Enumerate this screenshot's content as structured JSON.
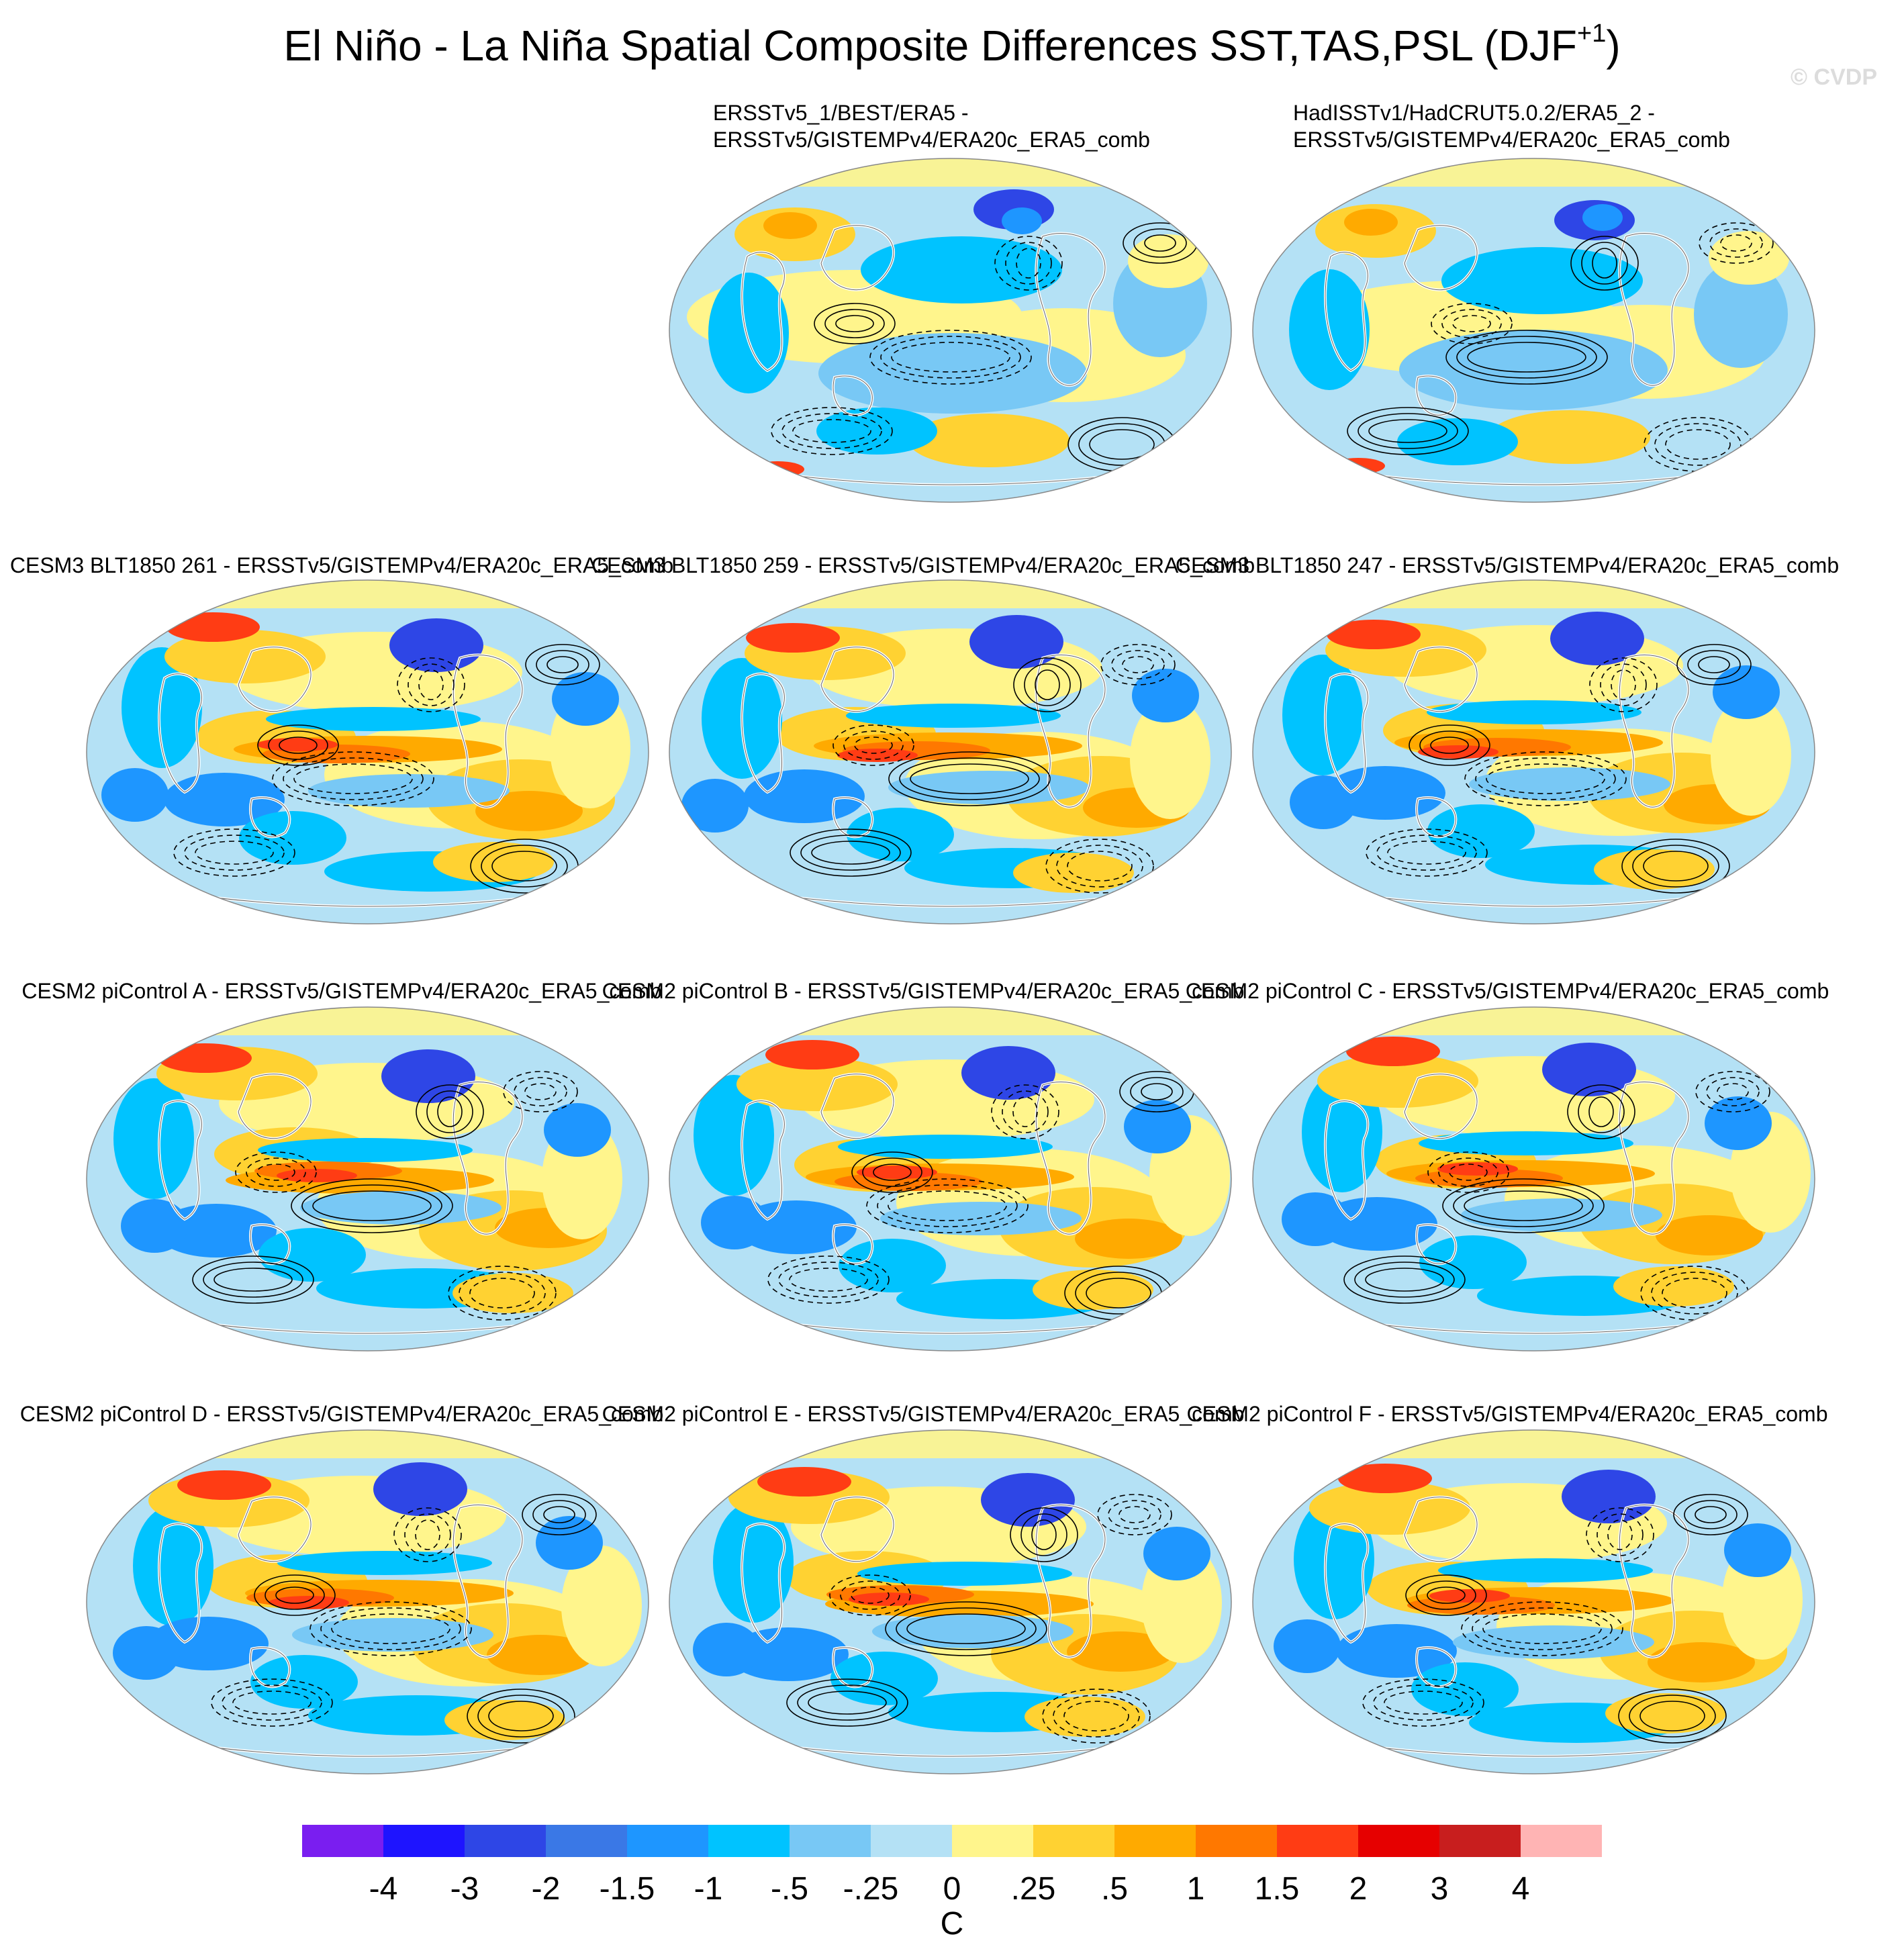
{
  "figure": {
    "title_main": "El Niño - La Niña Spatial Composite Differences SST,TAS,PSL (DJF",
    "title_sup": "+1",
    "title_close": ")",
    "watermark": "© CVDP"
  },
  "panels": [
    {
      "id": "obs1",
      "line1": "ERSSTv5_1/BEST/ERA5 -",
      "line2": "ERSSTv5/GISTEMPv4/ERA20c_ERA5_comb",
      "pattern": "obs"
    },
    {
      "id": "obs2",
      "line1": "HadISSTv1/HadCRUT5.0.2/ERA5_2 -",
      "line2": "ERSSTv5/GISTEMPv4/ERA20c_ERA5_comb",
      "pattern": "obs"
    },
    {
      "id": "cesm3-261",
      "label": "CESM3 BLT1850 261 - ERSSTv5/GISTEMPv4/ERA20c_ERA5_comb",
      "pattern": "model"
    },
    {
      "id": "cesm3-259",
      "label": "CESM3 BLT1850 259 - ERSSTv5/GISTEMPv4/ERA20c_ERA5_comb",
      "pattern": "model"
    },
    {
      "id": "cesm3-247",
      "label": "CESM3 BLT1850 247 - ERSSTv5/GISTEMPv4/ERA20c_ERA5_comb",
      "pattern": "model"
    },
    {
      "id": "cesm2-A",
      "label": "CESM2 piControl A - ERSSTv5/GISTEMPv4/ERA20c_ERA5_comb",
      "pattern": "model"
    },
    {
      "id": "cesm2-B",
      "label": "CESM2 piControl B - ERSSTv5/GISTEMPv4/ERA20c_ERA5_comb",
      "pattern": "model"
    },
    {
      "id": "cesm2-C",
      "label": "CESM2 piControl C - ERSSTv5/GISTEMPv4/ERA20c_ERA5_comb",
      "pattern": "model"
    },
    {
      "id": "cesm2-D",
      "label": "CESM2 piControl D - ERSSTv5/GISTEMPv4/ERA20c_ERA5_comb",
      "pattern": "model"
    },
    {
      "id": "cesm2-E",
      "label": "CESM2 piControl E - ERSSTv5/GISTEMPv4/ERA20c_ERA5_comb",
      "pattern": "model"
    },
    {
      "id": "cesm2-F",
      "label": "CESM2 piControl F - ERSSTv5/GISTEMPv4/ERA20c_ERA5_comb",
      "pattern": "model"
    }
  ],
  "colorbar": {
    "colors": [
      "#7a1ef0",
      "#1e14ff",
      "#2e46e6",
      "#3a78e6",
      "#1e96ff",
      "#00c3ff",
      "#78c8f5",
      "#b4e1f5",
      "#fff58c",
      "#ffd232",
      "#ffaa00",
      "#ff7800",
      "#ff3c14",
      "#e60000",
      "#c81e1e",
      "#ffb4b4"
    ],
    "tick_labels": [
      "-4",
      "-3",
      "-2",
      "-1.5",
      "-1",
      "-.5",
      "-.25",
      "0",
      ".25",
      ".5",
      "1",
      "1.5",
      "2",
      "3",
      "4"
    ],
    "units": "C"
  },
  "map_colors": {
    "base": "#b4e1f5",
    "lightblue": "#78c8f5",
    "cyan": "#00c3ff",
    "blue": "#1e96ff",
    "darkblue": "#2e46e6",
    "yellow": "#fff58c",
    "gold": "#ffd232",
    "orange": "#ffaa00",
    "darkorange": "#ff7800",
    "red": "#ff3c14",
    "deepred": "#e60000",
    "pink": "#ffb4b4",
    "land_outline": "#ffffff",
    "contour": "#000000"
  }
}
